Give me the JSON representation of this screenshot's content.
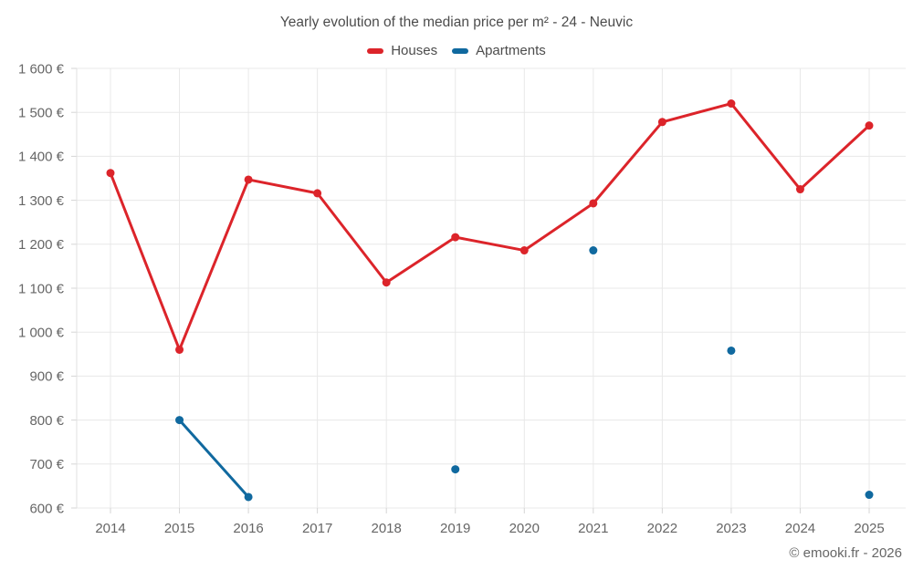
{
  "header": {
    "title": "Yearly evolution of the median price per m² - 24 - Neuvic"
  },
  "footer": {
    "copyright": "© emooki.fr - 2026"
  },
  "chart_data": {
    "type": "line",
    "title": "Yearly evolution of the median price per m² - 24 - Neuvic",
    "x": [
      2014,
      2015,
      2016,
      2017,
      2018,
      2019,
      2020,
      2021,
      2022,
      2023,
      2024,
      2025
    ],
    "series": [
      {
        "name": "Houses",
        "color": "#dc242a",
        "values": [
          1362,
          960,
          1347,
          1316,
          1113,
          1216,
          1186,
          1293,
          1478,
          1520,
          1325,
          1470
        ]
      },
      {
        "name": "Apartments",
        "color": "#10699f",
        "values": [
          null,
          800,
          625,
          null,
          null,
          688,
          null,
          1186,
          null,
          958,
          null,
          630
        ]
      }
    ],
    "ylim": [
      600,
      1600
    ],
    "y_tick_step": 100,
    "y_tick_labels": [
      "600 €",
      "700 €",
      "800 €",
      "900 €",
      "1 000 €",
      "1 100 €",
      "1 200 €",
      "1 300 €",
      "1 400 €",
      "1 500 €",
      "1 600 €"
    ],
    "currency": "€",
    "grid": true,
    "legend_position": "top",
    "connect_gaps": false
  }
}
